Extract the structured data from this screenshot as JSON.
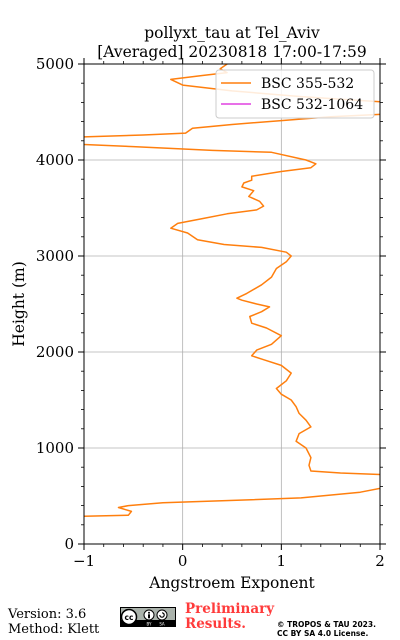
{
  "chart_data": {
    "type": "line",
    "title_line1": "pollyxt_tau at Tel_Aviv",
    "title_line2": "[Averaged] 20230818 17:00-17:59",
    "xlabel": "Angstroem Exponent",
    "ylabel": "Height (m)",
    "xlim": [
      -1,
      2
    ],
    "ylim": [
      0,
      5000
    ],
    "x_ticks": [
      -1,
      0,
      1,
      2
    ],
    "y_ticks": [
      0,
      1000,
      2000,
      3000,
      4000,
      5000
    ],
    "x_tick_labels": [
      "−1",
      "0",
      "1",
      "2"
    ],
    "y_tick_labels": [
      "0",
      "1000",
      "2000",
      "3000",
      "4000",
      "5000"
    ],
    "grid": true,
    "legend_position": "top-right",
    "series": [
      {
        "name": "BSC 355-532",
        "color": "#ff7f0e",
        "points": [
          [
            -1.0,
            290
          ],
          [
            -0.55,
            300
          ],
          [
            -0.52,
            340
          ],
          [
            -0.65,
            380
          ],
          [
            -0.55,
            400
          ],
          [
            -0.2,
            430
          ],
          [
            0.4,
            450
          ],
          [
            1.2,
            480
          ],
          [
            1.8,
            540
          ],
          [
            2.1,
            600
          ],
          [
            2.1,
            720
          ],
          [
            1.6,
            740
          ],
          [
            1.3,
            760
          ],
          [
            1.28,
            820
          ],
          [
            1.3,
            900
          ],
          [
            1.25,
            1000
          ],
          [
            1.15,
            1070
          ],
          [
            1.18,
            1150
          ],
          [
            1.3,
            1220
          ],
          [
            1.25,
            1290
          ],
          [
            1.18,
            1360
          ],
          [
            1.15,
            1430
          ],
          [
            1.1,
            1500
          ],
          [
            1.0,
            1560
          ],
          [
            0.95,
            1620
          ],
          [
            1.05,
            1700
          ],
          [
            1.1,
            1780
          ],
          [
            1.0,
            1860
          ],
          [
            0.82,
            1920
          ],
          [
            0.7,
            1960
          ],
          [
            0.75,
            2020
          ],
          [
            0.9,
            2080
          ],
          [
            1.0,
            2170
          ],
          [
            0.85,
            2250
          ],
          [
            0.7,
            2300
          ],
          [
            0.68,
            2370
          ],
          [
            0.8,
            2420
          ],
          [
            0.88,
            2470
          ],
          [
            0.75,
            2500
          ],
          [
            0.6,
            2540
          ],
          [
            0.55,
            2560
          ],
          [
            0.65,
            2610
          ],
          [
            0.8,
            2700
          ],
          [
            0.9,
            2780
          ],
          [
            0.95,
            2870
          ],
          [
            1.05,
            2940
          ],
          [
            1.1,
            3000
          ],
          [
            1.05,
            3040
          ],
          [
            0.8,
            3090
          ],
          [
            0.42,
            3120
          ],
          [
            0.15,
            3170
          ],
          [
            0.05,
            3240
          ],
          [
            -0.12,
            3290
          ],
          [
            -0.05,
            3340
          ],
          [
            0.2,
            3390
          ],
          [
            0.45,
            3440
          ],
          [
            0.75,
            3480
          ],
          [
            0.82,
            3520
          ],
          [
            0.78,
            3570
          ],
          [
            0.67,
            3620
          ],
          [
            0.72,
            3680
          ],
          [
            0.6,
            3720
          ],
          [
            0.62,
            3760
          ],
          [
            0.7,
            3790
          ],
          [
            0.7,
            3830
          ],
          [
            1.0,
            3880
          ],
          [
            1.3,
            3920
          ],
          [
            1.35,
            3960
          ],
          [
            1.25,
            4000
          ],
          [
            0.9,
            4080
          ],
          [
            0.3,
            4100
          ],
          [
            -0.5,
            4140
          ],
          [
            -1.2,
            4170
          ],
          [
            -1.3,
            4230
          ],
          [
            -0.4,
            4260
          ],
          [
            0.03,
            4280
          ],
          [
            0.1,
            4330
          ],
          [
            0.5,
            4370
          ],
          [
            1.0,
            4410
          ],
          [
            1.5,
            4450
          ],
          [
            2.1,
            4480
          ],
          [
            2.1,
            4600
          ],
          [
            1.2,
            4660
          ],
          [
            0.5,
            4720
          ],
          [
            0.0,
            4780
          ],
          [
            -0.12,
            4840
          ],
          [
            0.2,
            4880
          ],
          [
            0.45,
            4910
          ],
          [
            0.38,
            4950
          ],
          [
            0.45,
            5000
          ]
        ]
      },
      {
        "name": "BSC 532-1064",
        "color": "#e040e0",
        "points": []
      }
    ]
  },
  "footer": {
    "version": "Version: 3.6",
    "method": "Method: Klett",
    "preliminary_line1": "Preliminary",
    "preliminary_line2": "Results.",
    "copyright_line1": "© TROPOS & TAU 2023.",
    "copyright_line2": "CC BY SA 4.0 License.",
    "license_badge": "cc-by-sa-badge"
  }
}
